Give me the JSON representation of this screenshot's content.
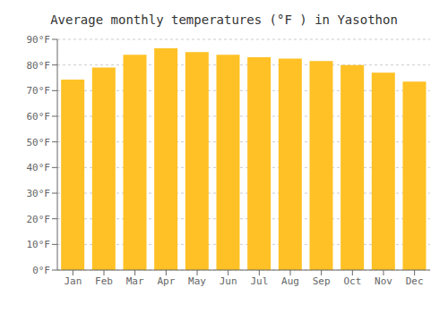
{
  "chart_data": {
    "type": "bar",
    "title": "Average monthly temperatures (°F ) in Yasothon",
    "categories": [
      "Jan",
      "Feb",
      "Mar",
      "Apr",
      "May",
      "Jun",
      "Jul",
      "Aug",
      "Sep",
      "Oct",
      "Nov",
      "Dec"
    ],
    "values": [
      74.3,
      79.0,
      84.0,
      86.5,
      85.0,
      84.0,
      83.0,
      82.5,
      81.5,
      80.0,
      77.0,
      73.5
    ],
    "color": "#FFC125",
    "ylim": [
      0,
      90
    ],
    "yticks": [
      {
        "value": 0,
        "label": "0°F"
      },
      {
        "value": 10,
        "label": "10°F"
      },
      {
        "value": 20,
        "label": "20°F"
      },
      {
        "value": 30,
        "label": "30°F"
      },
      {
        "value": 40,
        "label": "40°F"
      },
      {
        "value": 50,
        "label": "50°F"
      },
      {
        "value": 60,
        "label": "60°F"
      },
      {
        "value": 70,
        "label": "70°F"
      },
      {
        "value": 80,
        "label": "80°F"
      },
      {
        "value": 90,
        "label": "90°F"
      }
    ],
    "grid": true
  }
}
